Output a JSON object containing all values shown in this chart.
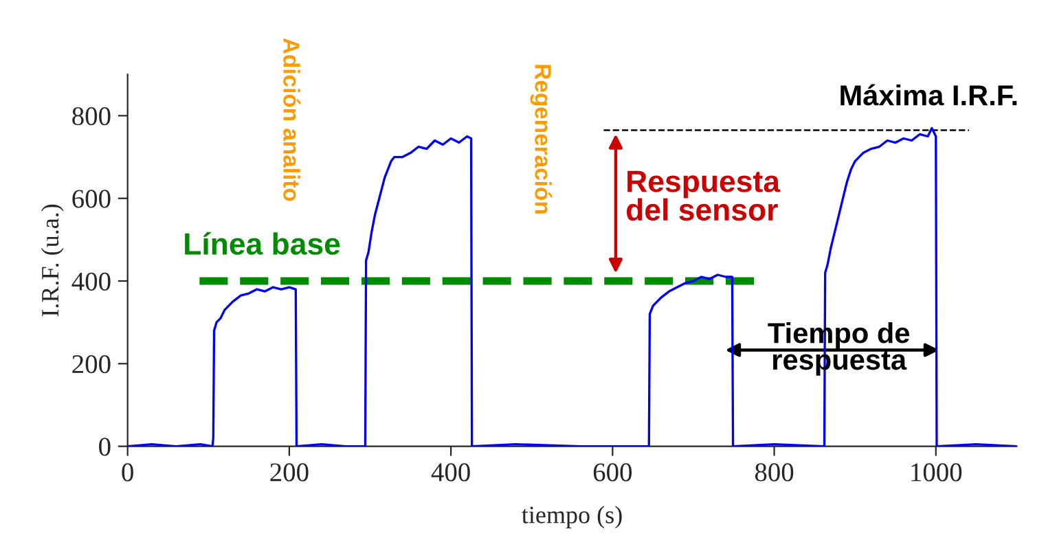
{
  "chart_data": {
    "type": "line",
    "xlabel": "tiempo (s)",
    "ylabel": "I.R.F. (u.a.)",
    "xlim": [
      0,
      1100
    ],
    "ylim": [
      0,
      900
    ],
    "xticks": [
      0,
      200,
      400,
      600,
      800,
      1000
    ],
    "yticks": [
      0,
      200,
      400,
      600,
      800
    ],
    "series": [
      {
        "color": "#0000ff",
        "line_style": "solid",
        "x": [
          0,
          30,
          60,
          90,
          105,
          106,
          107,
          110,
          115,
          120,
          125,
          130,
          140,
          150,
          160,
          170,
          180,
          190,
          200,
          208,
          209,
          240,
          270,
          294,
          295,
          298,
          302,
          306,
          310,
          314,
          318,
          322,
          326,
          330,
          340,
          350,
          360,
          370,
          380,
          390,
          400,
          410,
          420,
          425,
          426,
          480,
          560,
          645,
          646,
          650,
          655,
          660,
          670,
          680,
          690,
          700,
          710,
          720,
          730,
          740,
          748,
          749,
          800,
          862,
          863,
          866,
          870,
          875,
          880,
          885,
          890,
          895,
          900,
          905,
          910,
          920,
          930,
          940,
          950,
          960,
          970,
          980,
          990,
          995,
          1000,
          1001,
          1050,
          1100
        ],
        "values": [
          0,
          5,
          0,
          5,
          0,
          20,
          280,
          300,
          310,
          330,
          340,
          350,
          365,
          370,
          380,
          375,
          385,
          380,
          385,
          380,
          0,
          5,
          0,
          0,
          450,
          470,
          520,
          560,
          590,
          620,
          650,
          670,
          690,
          700,
          700,
          710,
          725,
          720,
          740,
          730,
          745,
          735,
          750,
          745,
          0,
          5,
          0,
          0,
          320,
          340,
          350,
          360,
          375,
          385,
          395,
          400,
          410,
          405,
          415,
          410,
          410,
          0,
          5,
          0,
          420,
          440,
          480,
          520,
          560,
          600,
          640,
          670,
          690,
          700,
          710,
          720,
          725,
          740,
          735,
          745,
          740,
          755,
          750,
          770,
          750,
          0,
          5,
          0
        ]
      },
      {
        "color": "#008c00",
        "line_style": "dashed",
        "x": [
          89,
          779
        ],
        "values": [
          400,
          400
        ]
      },
      {
        "color": "#000000",
        "line_style": "dashed",
        "x": [
          589,
          1041
        ],
        "values": [
          765,
          765
        ]
      }
    ],
    "annotations": [
      "Adición analito",
      "Regeneración",
      "Línea base",
      "Respuesta\ndel sensor",
      "Máxima I.R.F.",
      "Tiempo de\nrespuesta"
    ]
  }
}
